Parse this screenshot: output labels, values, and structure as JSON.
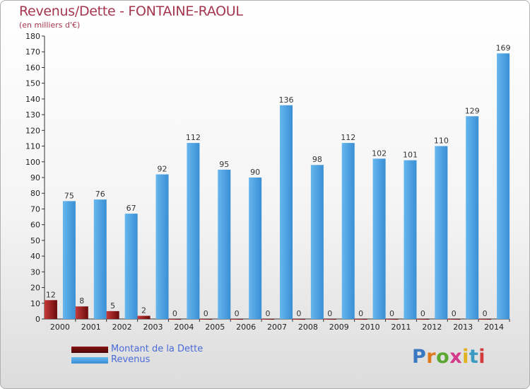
{
  "header": {
    "title": "Revenus/Dette - FONTAINE-RAOUL",
    "subtitle": "(en milliers d'€)"
  },
  "legend": {
    "items": [
      {
        "label": "Montant de la Dette",
        "color": "#7a0f0f"
      },
      {
        "label": "Revenus",
        "color": "#4fa3e3"
      }
    ]
  },
  "logo": {
    "text": "Proxiti",
    "letter_colors": [
      "#3a78c2",
      "#e07a1f",
      "#5aa832",
      "#d43a8a",
      "#e0b21f",
      "#3a9ac2",
      "#d43a3a"
    ]
  },
  "chart_data": {
    "type": "bar",
    "title": "Revenus/Dette - FONTAINE-RAOUL",
    "subtitle": "(en milliers d'€)",
    "categories": [
      "2000",
      "2001",
      "2002",
      "2003",
      "2004",
      "2005",
      "2006",
      "2007",
      "2008",
      "2009",
      "2010",
      "2011",
      "2012",
      "2013",
      "2014"
    ],
    "series": [
      {
        "name": "Montant de la Dette",
        "color": "#7a0f0f",
        "values": [
          12,
          8,
          5,
          2,
          0,
          0,
          0,
          0,
          0,
          0,
          0,
          0,
          0,
          0,
          0
        ]
      },
      {
        "name": "Revenus",
        "color": "#4fa3e3",
        "values": [
          75,
          76,
          67,
          92,
          112,
          95,
          90,
          136,
          98,
          112,
          102,
          101,
          110,
          129,
          169
        ]
      }
    ],
    "ylim": [
      0,
      180
    ],
    "ytick_step": 10,
    "grid": false,
    "legend_position": "bottom-left"
  }
}
